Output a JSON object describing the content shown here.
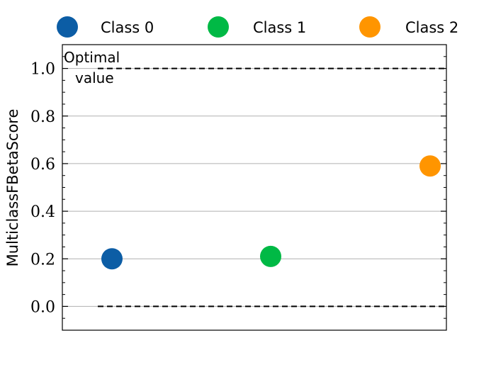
{
  "chart_data": {
    "type": "scatter",
    "title": "",
    "xlabel": "",
    "ylabel": "MulticlassFBetaScore",
    "ylim": [
      -0.1,
      1.1
    ],
    "yticks": [
      0.0,
      0.2,
      0.4,
      0.6,
      0.8,
      1.0
    ],
    "ytick_labels": [
      "0.0",
      "0.2",
      "0.4",
      "0.6",
      "0.8",
      "1.0"
    ],
    "grid": "horizontal",
    "legend_position": "top",
    "series": [
      {
        "name": "Class 0",
        "x": 0,
        "y": 0.2,
        "color": "#0c5da5"
      },
      {
        "name": "Class 1",
        "x": 1,
        "y": 0.21,
        "color": "#00b945"
      },
      {
        "name": "Class 2",
        "x": 2,
        "y": 0.59,
        "color": "#ff9500"
      }
    ],
    "reference_lines": [
      {
        "y": 1.0,
        "style": "dashed"
      },
      {
        "y": 0.0,
        "style": "dashed"
      }
    ],
    "annotation": {
      "line1": "Optimal",
      "line2": "value",
      "at_y": 1.0
    }
  }
}
